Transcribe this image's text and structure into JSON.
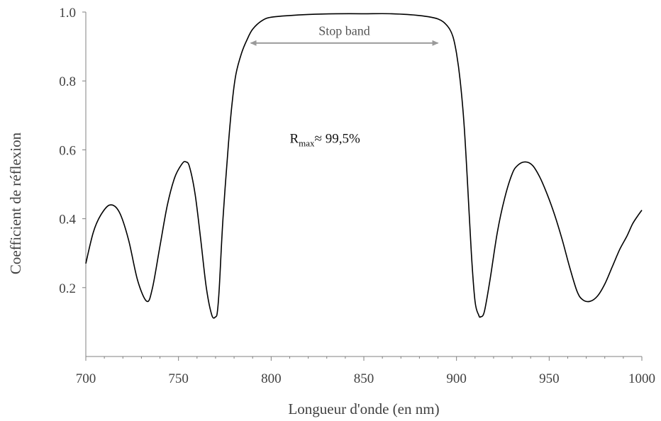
{
  "chart_data": {
    "type": "line",
    "title": "",
    "xlabel": "Longueur d'onde (en nm)",
    "ylabel": "Coefficient de réflexion",
    "xlim": [
      700,
      1000
    ],
    "ylim": [
      0,
      1.0
    ],
    "x_ticks": [
      700,
      750,
      800,
      850,
      900,
      950,
      1000
    ],
    "x_tick_labels": [
      "700",
      "750",
      "800",
      "850",
      "900",
      "950",
      "1000"
    ],
    "y_ticks": [
      0.2,
      0.4,
      0.6,
      0.8,
      1.0
    ],
    "y_tick_labels": [
      "0.2",
      "0.4",
      "0.6",
      "0.8",
      "1.0"
    ],
    "grid": false,
    "legend": "none",
    "line_color": "#000000",
    "series": [
      {
        "x": [
          700,
          704,
          708,
          713,
          718,
          723,
          728,
          733,
          736,
          740,
          744,
          748,
          752,
          754,
          756,
          759,
          762,
          765,
          768,
          770,
          771,
          772,
          774,
          777,
          779,
          781,
          784,
          787,
          790,
          795,
          800,
          810,
          820,
          835,
          850,
          865,
          880,
          890,
          895,
          898,
          900,
          902,
          904,
          906,
          908,
          910,
          912,
          913,
          915,
          918,
          922,
          926,
          930,
          933,
          937,
          941,
          945,
          949,
          953,
          957,
          961,
          965,
          968,
          972,
          976,
          980,
          984,
          988,
          992,
          995,
          998,
          1000
        ],
        "y": [
          0.27,
          0.36,
          0.41,
          0.44,
          0.42,
          0.34,
          0.22,
          0.16,
          0.2,
          0.32,
          0.44,
          0.52,
          0.56,
          0.565,
          0.55,
          0.47,
          0.34,
          0.2,
          0.12,
          0.115,
          0.13,
          0.2,
          0.4,
          0.62,
          0.74,
          0.82,
          0.88,
          0.92,
          0.95,
          0.975,
          0.985,
          0.99,
          0.993,
          0.995,
          0.995,
          0.995,
          0.99,
          0.98,
          0.96,
          0.93,
          0.88,
          0.8,
          0.68,
          0.5,
          0.3,
          0.16,
          0.12,
          0.115,
          0.13,
          0.22,
          0.36,
          0.46,
          0.53,
          0.555,
          0.565,
          0.555,
          0.52,
          0.47,
          0.41,
          0.34,
          0.26,
          0.19,
          0.165,
          0.16,
          0.175,
          0.21,
          0.26,
          0.31,
          0.35,
          0.385,
          0.41,
          0.425
        ]
      }
    ],
    "annotations": {
      "stop_band_label": "Stop band",
      "stop_band_range": [
        789,
        890
      ],
      "stop_band_y": 0.91,
      "rmax_prefix": "R",
      "rmax_sub": "max",
      "rmax_value": "≈ 99,5%",
      "rmax_position": [
        810,
        0.62
      ]
    }
  }
}
